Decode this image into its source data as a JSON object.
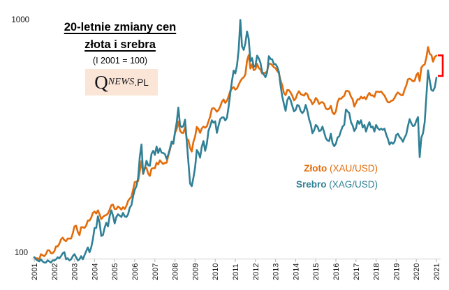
{
  "page_bg": "#ffffff",
  "title_line1": "20-letnie zmiany cen",
  "title_line2": "złota i srebra",
  "subtitle": "(I 2001 = 100)",
  "logo": {
    "q": "Q",
    "news": "NEWS",
    "pl": ".PL",
    "bg": "#FBE5D6"
  },
  "legend": {
    "items": [
      {
        "name": "Złoto",
        "pair": " (XAU/USD)",
        "color": "#E36C0A"
      },
      {
        "name": "Srebro",
        "pair": " (XAG/USD)",
        "color": "#2F8096"
      }
    ]
  },
  "colors": {
    "gold": "#E36C0A",
    "silver": "#2F8096",
    "axis_line": "#D9D9D9",
    "tick_mark": "#BFBFBF",
    "bracket": "#FF0000",
    "text": "#111111"
  },
  "chart_data": {
    "type": "line",
    "title": "20-letnie zmiany cen złota i srebra",
    "subtitle": "(I 2001 = 100)",
    "y_scale": "log",
    "ylim": [
      100,
      1000
    ],
    "y_tick_labels": [
      "100",
      "1000"
    ],
    "x_unit": "monthly, 2001-01 to 2021-01",
    "x_tick_labels": [
      "2001",
      "2002",
      "2003",
      "2004",
      "2005",
      "2006",
      "2007",
      "2008",
      "2009",
      "2010",
      "2011",
      "2012",
      "2013",
      "2014",
      "2015",
      "2016",
      "2017",
      "2018",
      "2019",
      "2020",
      "2021"
    ],
    "grid": false,
    "legend_position": "inside-right",
    "series": [
      {
        "name": "Złoto (XAU/USD)",
        "color": "#E36C0A",
        "values": [
          100,
          99,
          99,
          98,
          103,
          102,
          101,
          103,
          107,
          107,
          104,
          104,
          106,
          111,
          111,
          114,
          119,
          121,
          118,
          117,
          120,
          120,
          120,
          126,
          135,
          136,
          128,
          124,
          134,
          134,
          133,
          136,
          143,
          143,
          147,
          154,
          156,
          153,
          158,
          152,
          145,
          148,
          150,
          151,
          153,
          159,
          166,
          167,
          160,
          160,
          164,
          162,
          159,
          163,
          160,
          165,
          173,
          177,
          180,
          193,
          208,
          209,
          210,
          231,
          255,
          225,
          239,
          239,
          226,
          221,
          237,
          238,
          238,
          251,
          247,
          257,
          252,
          248,
          251,
          251,
          269,
          285,
          304,
          303,
          336,
          348,
          375,
          343,
          336,
          336,
          355,
          317,
          313,
          290,
          280,
          308,
          324,
          356,
          349,
          336,
          351,
          357,
          353,
          358,
          376,
          394,
          425,
          428,
          422,
          413,
          420,
          434,
          455,
          465,
          450,
          459,
          480,
          506,
          517,
          525,
          512,
          518,
          537,
          556,
          570,
          577,
          594,
          680,
          717,
          629,
          656,
          619,
          624,
          658,
          632,
          623,
          599,
          603,
          602,
          614,
          659,
          659,
          650,
          637,
          631,
          614,
          601,
          561,
          534,
          495,
          485,
          510,
          509,
          497,
          482,
          461,
          469,
          491,
          504,
          490,
          486,
          483,
          495,
          489,
          467,
          462,
          444,
          453,
          472,
          463,
          445,
          452,
          453,
          446,
          426,
          422,
          425,
          437,
          410,
          403,
          414,
          453,
          470,
          468,
          476,
          482,
          505,
          506,
          501,
          478,
          466,
          434,
          450,
          466,
          465,
          478,
          470,
          476,
          466,
          484,
          496,
          483,
          484,
          477,
          502,
          502,
          500,
          503,
          492,
          483,
          467,
          453,
          452,
          459,
          461,
          472,
          488,
          498,
          491,
          485,
          485,
          513,
          533,
          566,
          570,
          564,
          555,
          558,
          589,
          603,
          556,
          635,
          648,
          654,
          700,
          775,
          725,
          717,
          672,
          704,
          713
        ]
      },
      {
        "name": "Srebro (XAG/USD)",
        "color": "#2F8096",
        "values": [
          100,
          98,
          97,
          96,
          98,
          96,
          95,
          95,
          97,
          96,
          95,
          97,
          97,
          98,
          100,
          99,
          101,
          104,
          105,
          98,
          99,
          97,
          98,
          101,
          103,
          100,
          97,
          98,
          101,
          98,
          102,
          106,
          110,
          105,
          110,
          119,
          133,
          133,
          149,
          140,
          123,
          124,
          133,
          140,
          135,
          149,
          158,
          150,
          139,
          148,
          152,
          150,
          148,
          154,
          149,
          148,
          152,
          162,
          166,
          181,
          193,
          200,
          217,
          266,
          300,
          226,
          237,
          256,
          245,
          244,
          274,
          282,
          271,
          294,
          276,
          289,
          277,
          276,
          273,
          261,
          272,
          289,
          309,
          302,
          338,
          371,
          430,
          362,
          355,
          359,
          382,
          310,
          253,
          205,
          200,
          217,
          240,
          284,
          277,
          264,
          294,
          310,
          282,
          302,
          343,
          359,
          380,
          371,
          376,
          336,
          361,
          384,
          390,
          391,
          379,
          389,
          434,
          494,
          557,
          616,
          600,
          648,
          756,
          1010,
          781,
          754,
          806,
          902,
          838,
          675,
          696,
          639,
          646,
          713,
          694,
          665,
          608,
          593,
          578,
          606,
          709,
          690,
          688,
          656,
          656,
          639,
          608,
          532,
          479,
          445,
          416,
          462,
          477,
          462,
          437,
          414,
          420,
          441,
          437,
          416,
          407,
          416,
          441,
          416,
          384,
          365,
          335,
          344,
          363,
          357,
          342,
          344,
          357,
          338,
          319,
          312,
          310,
          333,
          304,
          295,
          302,
          321,
          325,
          342,
          357,
          363,
          422,
          414,
          407,
          373,
          361,
          342,
          352,
          378,
          367,
          380,
          354,
          363,
          340,
          359,
          373,
          354,
          357,
          340,
          363,
          352,
          346,
          350,
          346,
          350,
          331,
          317,
          300,
          306,
          302,
          308,
          329,
          333,
          323,
          317,
          308,
          321,
          331,
          359,
          384,
          369,
          359,
          361,
          378,
          392,
          265,
          321,
          335,
          373,
          480,
          618,
          559,
          510,
          506,
          523,
          575
        ]
      }
    ],
    "annotation": {
      "type": "end-gap-bracket",
      "color": "#FF0000",
      "from_value": 715,
      "to_value": 585
    }
  }
}
